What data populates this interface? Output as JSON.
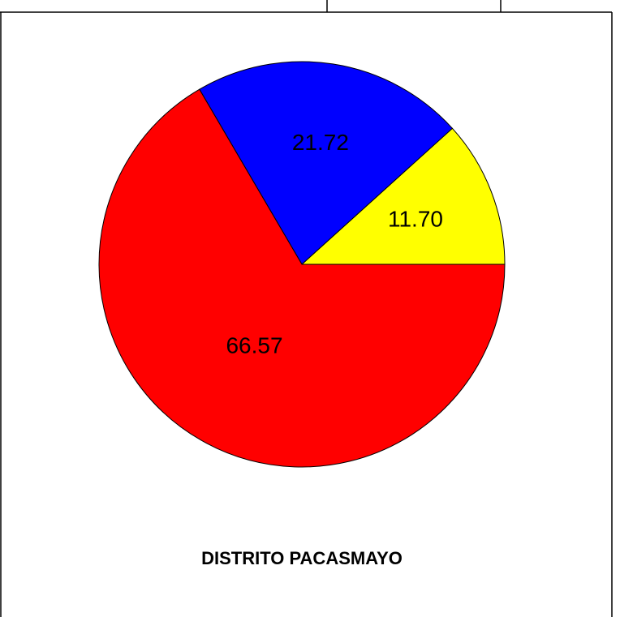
{
  "chart_data": {
    "type": "pie",
    "title": "DISTRITO PACASMAYO",
    "values": [
      11.7,
      21.72,
      66.57
    ],
    "value_labels": [
      "11.70",
      "21.72",
      "66.57"
    ],
    "colors": [
      "#ffff00",
      "#0000ff",
      "#ff0000"
    ]
  }
}
